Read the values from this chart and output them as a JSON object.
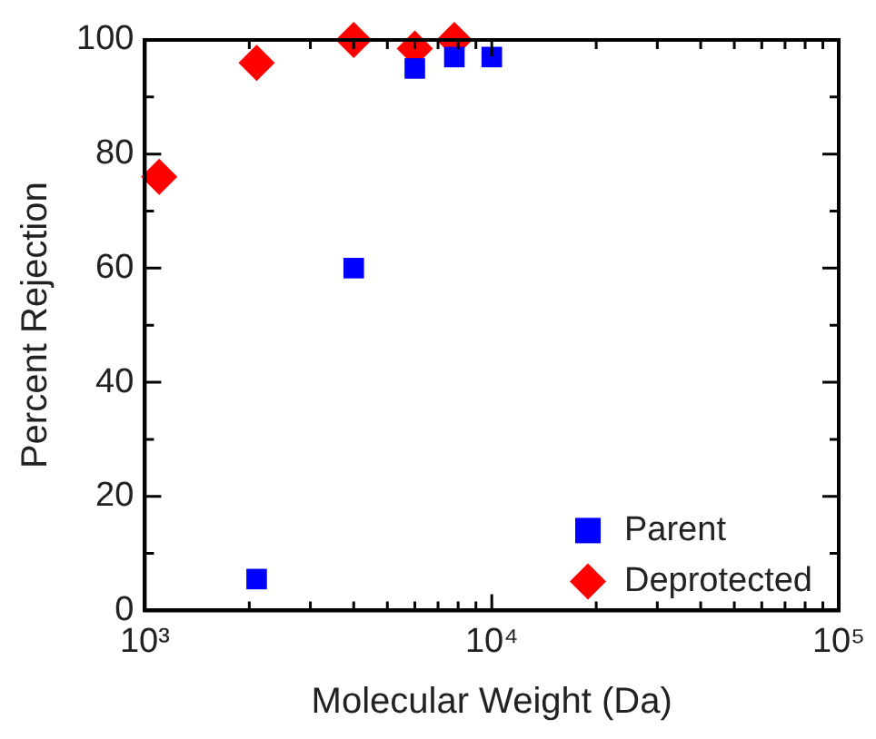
{
  "chart_data": {
    "type": "scatter",
    "xlabel": "Molecular Weight (Da)",
    "ylabel": "Percent Rejection",
    "log": "x",
    "xlim": [
      1000,
      100000
    ],
    "ylim": [
      0,
      100
    ],
    "xticks": [
      {
        "value": 1000,
        "label": "10³"
      },
      {
        "value": 2000,
        "label": null
      },
      {
        "value": 3000,
        "label": null
      },
      {
        "value": 4000,
        "label": null
      },
      {
        "value": 5000,
        "label": null
      },
      {
        "value": 6000,
        "label": null
      },
      {
        "value": 7000,
        "label": null
      },
      {
        "value": 8000,
        "label": null
      },
      {
        "value": 9000,
        "label": null
      },
      {
        "value": 10000,
        "label": "10⁴"
      },
      {
        "value": 20000,
        "label": null
      },
      {
        "value": 30000,
        "label": null
      },
      {
        "value": 40000,
        "label": null
      },
      {
        "value": 50000,
        "label": null
      },
      {
        "value": 60000,
        "label": null
      },
      {
        "value": 70000,
        "label": null
      },
      {
        "value": 80000,
        "label": null
      },
      {
        "value": 90000,
        "label": null
      },
      {
        "value": 100000,
        "label": "10⁵"
      }
    ],
    "yticks": [
      {
        "value": 0,
        "label": "0"
      },
      {
        "value": 10,
        "label": null
      },
      {
        "value": 20,
        "label": "20"
      },
      {
        "value": 30,
        "label": null
      },
      {
        "value": 40,
        "label": "40"
      },
      {
        "value": 50,
        "label": null
      },
      {
        "value": 60,
        "label": "60"
      },
      {
        "value": 70,
        "label": null
      },
      {
        "value": 80,
        "label": "80"
      },
      {
        "value": 90,
        "label": null
      },
      {
        "value": 100,
        "label": "100"
      }
    ],
    "grid": false,
    "legend": "bottom right",
    "series": [
      {
        "name": "Parent",
        "color": "#0000ff",
        "marker": "square",
        "x": [
          2100,
          4000,
          6000,
          7800,
          10000
        ],
        "values": [
          5.5,
          60,
          95,
          97,
          97
        ]
      },
      {
        "name": "Deprotected",
        "color": "#ff0000",
        "marker": "diamond",
        "x": [
          1100,
          2100,
          4000,
          6000,
          7800
        ],
        "values": [
          76,
          96,
          100,
          98.5,
          100
        ]
      }
    ]
  }
}
